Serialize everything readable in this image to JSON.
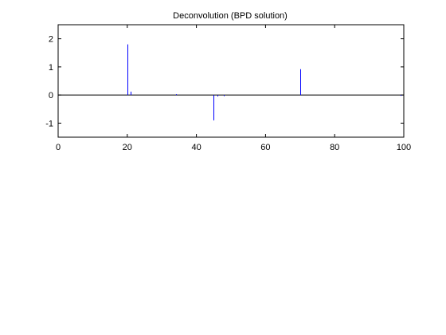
{
  "colors": {
    "background": "#ffffff",
    "axes": "#000000",
    "series": "#0000ff",
    "baseline": "#000000"
  },
  "chart_data": {
    "type": "stem",
    "title": "Deconvolution (BPD solution)",
    "xlabel": "",
    "ylabel": "",
    "xlim": [
      0,
      100
    ],
    "ylim": [
      -1.5,
      2.5
    ],
    "xticks": [
      0,
      20,
      40,
      60,
      80,
      100
    ],
    "yticks": [
      -1,
      0,
      1,
      2
    ],
    "xtick_labels": [
      "0",
      "20",
      "40",
      "60",
      "80",
      "100"
    ],
    "ytick_labels": [
      "-1",
      "0",
      "1",
      "2"
    ],
    "grid": false,
    "series": [
      {
        "x": [
          20,
          21,
          34,
          45,
          46,
          48,
          70,
          99
        ],
        "y": [
          1.8,
          0.12,
          0.03,
          -0.9,
          -0.05,
          -0.04,
          0.92,
          -0.03
        ]
      }
    ]
  }
}
